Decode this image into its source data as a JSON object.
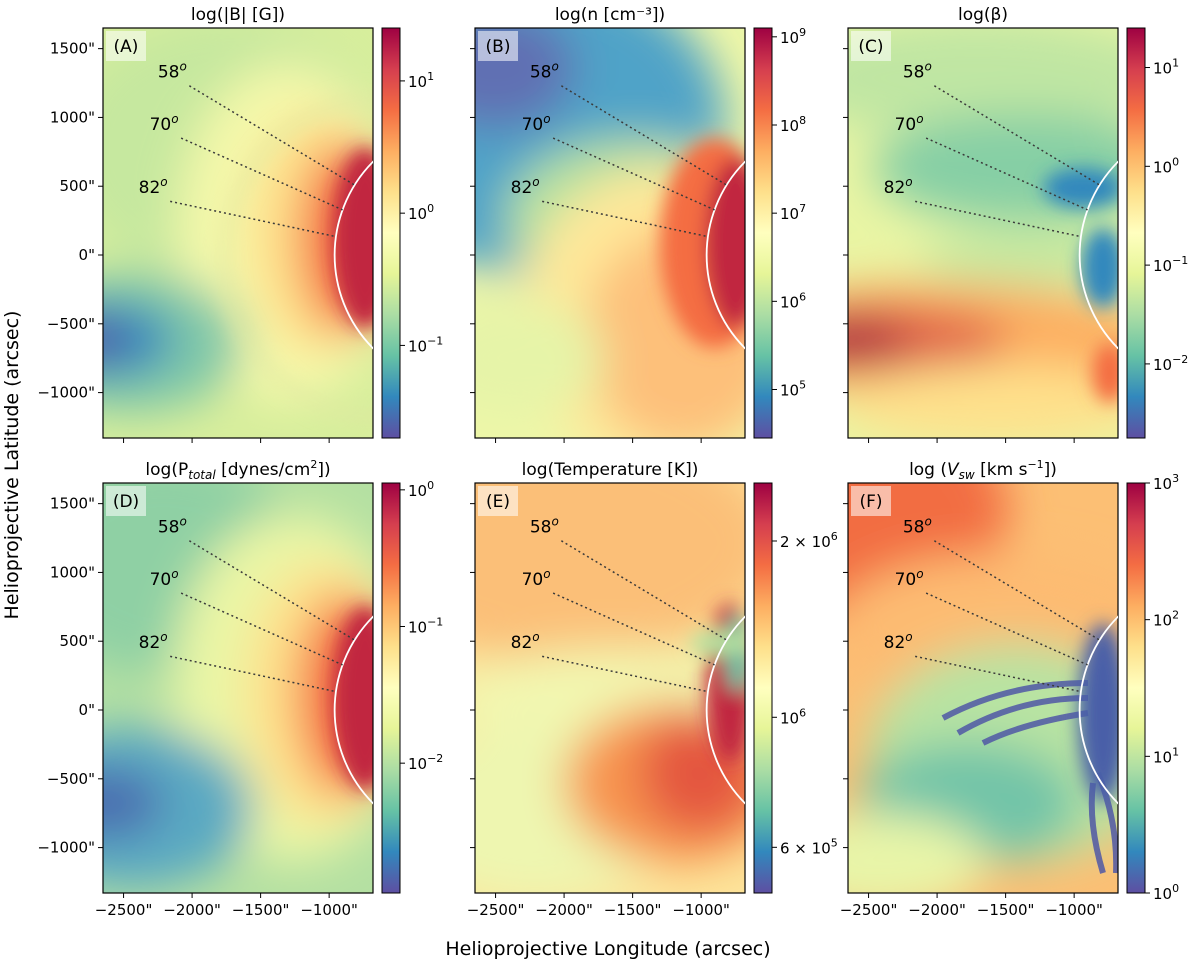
{
  "figure": {
    "xlabel": "Helioprojective Longitude (arcsec)",
    "ylabel": "Helioprojective Latitude (arcsec)"
  },
  "axes": {
    "xlim": [
      -2650,
      -680
    ],
    "ylim": [
      -1330,
      1650
    ],
    "xticks": [
      -2500,
      -2000,
      -1500,
      -1000
    ],
    "xtick_labels": [
      "−2500\"",
      "−2000\"",
      "−1500\"",
      "−1000\""
    ],
    "yticks": [
      1500,
      1000,
      500,
      0,
      -500,
      -1000
    ],
    "ytick_labels": [
      "1500\"",
      "1000\"",
      "500\"",
      "0\"",
      "−500\"",
      "−1000\""
    ],
    "limb_radius_arcsec": 960
  },
  "chart_data": [
    {
      "type": "heatmap",
      "panel_label": "(A)",
      "title": "log(|B| [G])",
      "colorbar_ticks": [
        {
          "label": "10",
          "exp": "1",
          "log": 1
        },
        {
          "label": "10",
          "exp": "0",
          "log": 0
        },
        {
          "label": "10",
          "exp": "−1",
          "log": -1
        }
      ],
      "colorbar_range_log": [
        -1.7,
        1.4
      ],
      "angle_labels": [
        {
          "deg": "58",
          "x": -2250,
          "y": 1290
        },
        {
          "deg": "70",
          "x": -2310,
          "y": 910
        },
        {
          "deg": "82",
          "x": -2390,
          "y": 450
        }
      ]
    },
    {
      "type": "heatmap",
      "panel_label": "(B)",
      "title": "log(n [cm⁻³])",
      "colorbar_ticks": [
        {
          "label": "10",
          "exp": "9",
          "log": 9
        },
        {
          "label": "10",
          "exp": "8",
          "log": 8
        },
        {
          "label": "10",
          "exp": "7",
          "log": 7
        },
        {
          "label": "10",
          "exp": "6",
          "log": 6
        },
        {
          "label": "10",
          "exp": "5",
          "log": 5
        }
      ],
      "colorbar_range_log": [
        4.45,
        9.1
      ],
      "angle_labels": [
        {
          "deg": "58",
          "x": -2250,
          "y": 1290
        },
        {
          "deg": "70",
          "x": -2310,
          "y": 910
        },
        {
          "deg": "82",
          "x": -2390,
          "y": 450
        }
      ]
    },
    {
      "type": "heatmap",
      "panel_label": "(C)",
      "title": "log(β)",
      "colorbar_ticks": [
        {
          "label": "10",
          "exp": "1",
          "log": 1
        },
        {
          "label": "10",
          "exp": "0",
          "log": 0
        },
        {
          "label": "10",
          "exp": "−1",
          "log": -1
        },
        {
          "label": "10",
          "exp": "−2",
          "log": -2
        }
      ],
      "colorbar_range_log": [
        -2.75,
        1.4
      ],
      "angle_labels": [
        {
          "deg": "58",
          "x": -2250,
          "y": 1290
        },
        {
          "deg": "70",
          "x": -2310,
          "y": 910
        },
        {
          "deg": "82",
          "x": -2390,
          "y": 450
        }
      ]
    },
    {
      "type": "heatmap",
      "panel_label": "(D)",
      "title": "log(P_total [dynes/cm²])",
      "colorbar_ticks": [
        {
          "label": "10",
          "exp": "0",
          "log": 0
        },
        {
          "label": "10",
          "exp": "−1",
          "log": -1
        },
        {
          "label": "10",
          "exp": "−2",
          "log": -2
        }
      ],
      "colorbar_range_log": [
        -2.95,
        0.05
      ],
      "angle_labels": [
        {
          "deg": "58",
          "x": -2250,
          "y": 1290
        },
        {
          "deg": "70",
          "x": -2310,
          "y": 910
        },
        {
          "deg": "82",
          "x": -2390,
          "y": 450
        }
      ]
    },
    {
      "type": "heatmap",
      "panel_label": "(E)",
      "title": "log(Temperature [K])",
      "colorbar_ticks": [
        {
          "label": "2 × 10",
          "exp": "6",
          "log": 6.301
        },
        {
          "label": "10",
          "exp": "6",
          "log": 6.0
        },
        {
          "label": "6 × 10",
          "exp": "5",
          "log": 5.778
        }
      ],
      "colorbar_range_log": [
        5.7,
        6.4
      ],
      "angle_labels": [
        {
          "deg": "58",
          "x": -2250,
          "y": 1290
        },
        {
          "deg": "70",
          "x": -2310,
          "y": 910
        },
        {
          "deg": "82",
          "x": -2390,
          "y": 450
        }
      ]
    },
    {
      "type": "heatmap",
      "panel_label": "(F)",
      "title": "log (V_sw [km s⁻¹])",
      "colorbar_ticks": [
        {
          "label": "10",
          "exp": "3",
          "log": 3
        },
        {
          "label": "10",
          "exp": "2",
          "log": 2
        },
        {
          "label": "10",
          "exp": "1",
          "log": 1
        },
        {
          "label": "10",
          "exp": "0",
          "log": 0
        }
      ],
      "colorbar_range_log": [
        0,
        3
      ],
      "angle_labels": [
        {
          "deg": "58",
          "x": -2250,
          "y": 1290
        },
        {
          "deg": "70",
          "x": -2310,
          "y": 910
        },
        {
          "deg": "82",
          "x": -2390,
          "y": 450
        }
      ]
    }
  ]
}
